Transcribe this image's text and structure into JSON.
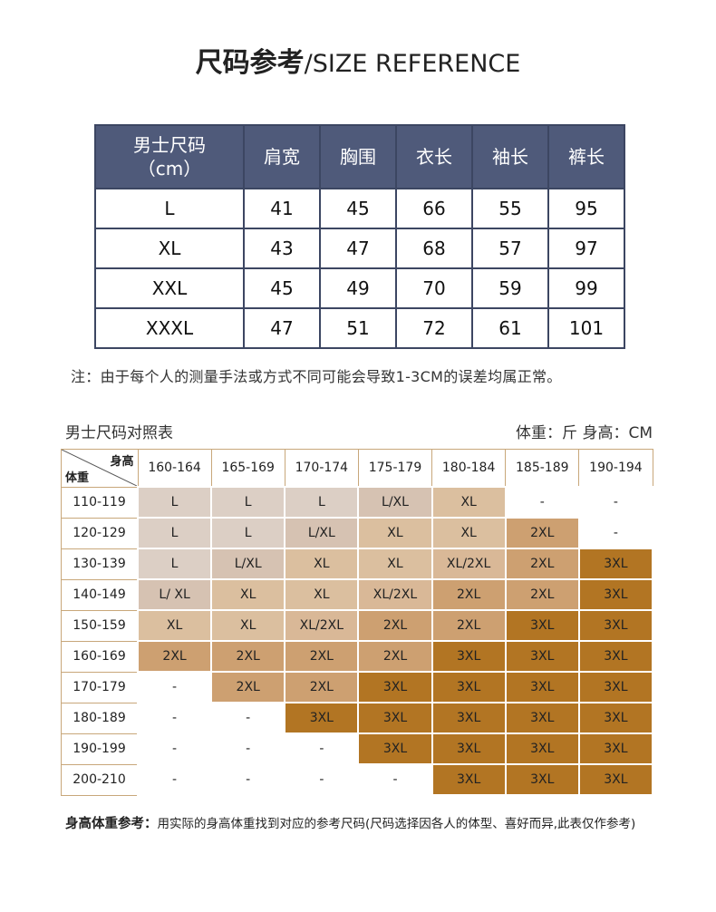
{
  "title": {
    "cn": "尺码参考",
    "sep": "/",
    "en": "SIZE REFERENCE"
  },
  "size_table": {
    "headers": [
      "男士尺码\n（cm）",
      "肩宽",
      "胸围",
      "衣长",
      "袖长",
      "裤长"
    ],
    "rows": [
      [
        "L",
        "41",
        "45",
        "66",
        "55",
        "95"
      ],
      [
        "XL",
        "43",
        "47",
        "68",
        "57",
        "97"
      ],
      [
        "XXL",
        "45",
        "49",
        "70",
        "59",
        "99"
      ],
      [
        "XXXL",
        "47",
        "51",
        "72",
        "61",
        "101"
      ]
    ]
  },
  "note": "注：由于每个人的测量手法或方式不同可能会导致1-3CM的误差均属正常。",
  "chart": {
    "title": "男士尺码对照表",
    "unit": "体重：斤  身高：CM",
    "corner_height": "身高",
    "corner_weight": "体重",
    "height_ranges": [
      "160-164",
      "165-169",
      "170-174",
      "175-179",
      "180-184",
      "185-189",
      "190-194"
    ],
    "weight_ranges": [
      "110-119",
      "120-129",
      "130-139",
      "140-149",
      "150-159",
      "160-169",
      "170-179",
      "180-189",
      "190-199",
      "200-210"
    ],
    "cells": [
      [
        "L",
        "L",
        "L",
        "L/XL",
        "XL",
        "-",
        "-"
      ],
      [
        "L",
        "L",
        "L/XL",
        "XL",
        "XL",
        "2XL",
        "-"
      ],
      [
        "L",
        "L/XL",
        "XL",
        "XL",
        "XL/2XL",
        "2XL",
        "3XL"
      ],
      [
        "L/ XL",
        "XL",
        "XL",
        "XL/2XL",
        "2XL",
        "2XL",
        "3XL"
      ],
      [
        "XL",
        "XL",
        "XL/2XL",
        "2XL",
        "2XL",
        "3XL",
        "3XL"
      ],
      [
        "2XL",
        "2XL",
        "2XL",
        "2XL",
        "3XL",
        "3XL",
        "3XL"
      ],
      [
        "-",
        "2XL",
        "2XL",
        "3XL",
        "3XL",
        "3XL",
        "3XL"
      ],
      [
        "-",
        "-",
        "3XL",
        "3XL",
        "3XL",
        "3XL",
        "3XL"
      ],
      [
        "-",
        "-",
        "-",
        "3XL",
        "3XL",
        "3XL",
        "3XL"
      ],
      [
        "-",
        "-",
        "-",
        "-",
        "3XL",
        "3XL",
        "3XL"
      ]
    ],
    "size_colors": {
      "L": "#dccfc5",
      "L/XL": "#d6c2b2",
      "L/ XL": "#d6c2b2",
      "XL": "#dbbf9f",
      "XL/2XL": "#d9b897",
      "2XL": "#cda071",
      "3XL": "#b27523",
      "-": "#ffffff"
    }
  },
  "footnote": {
    "lead": "身高体重参考：",
    "text": "用实际的身高体重找到对应的参考尺码(尺码选择因各人的体型、喜好而异,此表仅作参考)"
  }
}
